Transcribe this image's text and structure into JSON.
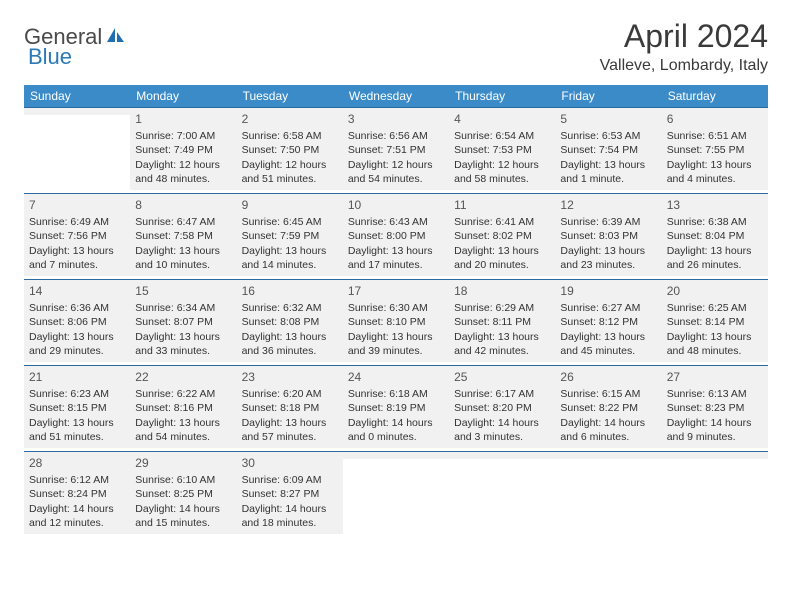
{
  "brand": {
    "part1": "General",
    "part2": "Blue"
  },
  "title": "April 2024",
  "location": "Valleve, Lombardy, Italy",
  "header_bg": "#3b8bc9",
  "rule_color": "#2a6aa0",
  "cell_bg": "#f1f1f1",
  "day_names": [
    "Sunday",
    "Monday",
    "Tuesday",
    "Wednesday",
    "Thursday",
    "Friday",
    "Saturday"
  ],
  "weeks": [
    [
      null,
      {
        "n": "1",
        "sr": "7:00 AM",
        "ss": "7:49 PM",
        "dl": "12 hours and 48 minutes."
      },
      {
        "n": "2",
        "sr": "6:58 AM",
        "ss": "7:50 PM",
        "dl": "12 hours and 51 minutes."
      },
      {
        "n": "3",
        "sr": "6:56 AM",
        "ss": "7:51 PM",
        "dl": "12 hours and 54 minutes."
      },
      {
        "n": "4",
        "sr": "6:54 AM",
        "ss": "7:53 PM",
        "dl": "12 hours and 58 minutes."
      },
      {
        "n": "5",
        "sr": "6:53 AM",
        "ss": "7:54 PM",
        "dl": "13 hours and 1 minute."
      },
      {
        "n": "6",
        "sr": "6:51 AM",
        "ss": "7:55 PM",
        "dl": "13 hours and 4 minutes."
      }
    ],
    [
      {
        "n": "7",
        "sr": "6:49 AM",
        "ss": "7:56 PM",
        "dl": "13 hours and 7 minutes."
      },
      {
        "n": "8",
        "sr": "6:47 AM",
        "ss": "7:58 PM",
        "dl": "13 hours and 10 minutes."
      },
      {
        "n": "9",
        "sr": "6:45 AM",
        "ss": "7:59 PM",
        "dl": "13 hours and 14 minutes."
      },
      {
        "n": "10",
        "sr": "6:43 AM",
        "ss": "8:00 PM",
        "dl": "13 hours and 17 minutes."
      },
      {
        "n": "11",
        "sr": "6:41 AM",
        "ss": "8:02 PM",
        "dl": "13 hours and 20 minutes."
      },
      {
        "n": "12",
        "sr": "6:39 AM",
        "ss": "8:03 PM",
        "dl": "13 hours and 23 minutes."
      },
      {
        "n": "13",
        "sr": "6:38 AM",
        "ss": "8:04 PM",
        "dl": "13 hours and 26 minutes."
      }
    ],
    [
      {
        "n": "14",
        "sr": "6:36 AM",
        "ss": "8:06 PM",
        "dl": "13 hours and 29 minutes."
      },
      {
        "n": "15",
        "sr": "6:34 AM",
        "ss": "8:07 PM",
        "dl": "13 hours and 33 minutes."
      },
      {
        "n": "16",
        "sr": "6:32 AM",
        "ss": "8:08 PM",
        "dl": "13 hours and 36 minutes."
      },
      {
        "n": "17",
        "sr": "6:30 AM",
        "ss": "8:10 PM",
        "dl": "13 hours and 39 minutes."
      },
      {
        "n": "18",
        "sr": "6:29 AM",
        "ss": "8:11 PM",
        "dl": "13 hours and 42 minutes."
      },
      {
        "n": "19",
        "sr": "6:27 AM",
        "ss": "8:12 PM",
        "dl": "13 hours and 45 minutes."
      },
      {
        "n": "20",
        "sr": "6:25 AM",
        "ss": "8:14 PM",
        "dl": "13 hours and 48 minutes."
      }
    ],
    [
      {
        "n": "21",
        "sr": "6:23 AM",
        "ss": "8:15 PM",
        "dl": "13 hours and 51 minutes."
      },
      {
        "n": "22",
        "sr": "6:22 AM",
        "ss": "8:16 PM",
        "dl": "13 hours and 54 minutes."
      },
      {
        "n": "23",
        "sr": "6:20 AM",
        "ss": "8:18 PM",
        "dl": "13 hours and 57 minutes."
      },
      {
        "n": "24",
        "sr": "6:18 AM",
        "ss": "8:19 PM",
        "dl": "14 hours and 0 minutes."
      },
      {
        "n": "25",
        "sr": "6:17 AM",
        "ss": "8:20 PM",
        "dl": "14 hours and 3 minutes."
      },
      {
        "n": "26",
        "sr": "6:15 AM",
        "ss": "8:22 PM",
        "dl": "14 hours and 6 minutes."
      },
      {
        "n": "27",
        "sr": "6:13 AM",
        "ss": "8:23 PM",
        "dl": "14 hours and 9 minutes."
      }
    ],
    [
      {
        "n": "28",
        "sr": "6:12 AM",
        "ss": "8:24 PM",
        "dl": "14 hours and 12 minutes."
      },
      {
        "n": "29",
        "sr": "6:10 AM",
        "ss": "8:25 PM",
        "dl": "14 hours and 15 minutes."
      },
      {
        "n": "30",
        "sr": "6:09 AM",
        "ss": "8:27 PM",
        "dl": "14 hours and 18 minutes."
      },
      null,
      null,
      null,
      null
    ]
  ],
  "labels": {
    "sunrise": "Sunrise:",
    "sunset": "Sunset:",
    "daylight": "Daylight:"
  }
}
